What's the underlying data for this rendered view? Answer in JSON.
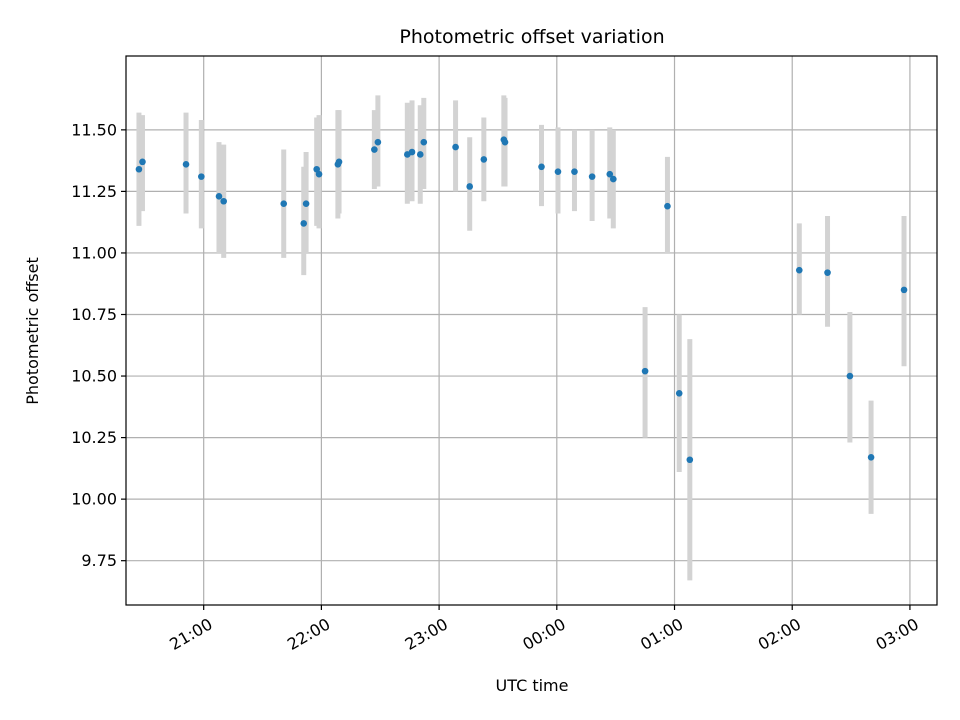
{
  "chart_data": {
    "type": "scatter",
    "title": "Photometric offset variation",
    "xlabel": "UTC time",
    "ylabel": "Photometric offset",
    "x_unit": "UTC hours (values ≥ 24 are after midnight)",
    "xlim": [
      20.34,
      27.23
    ],
    "ylim": [
      9.57,
      11.8
    ],
    "grid": true,
    "x_ticks": [
      {
        "value": 21,
        "label": "21:00"
      },
      {
        "value": 22,
        "label": "22:00"
      },
      {
        "value": 23,
        "label": "23:00"
      },
      {
        "value": 24,
        "label": "00:00"
      },
      {
        "value": 25,
        "label": "01:00"
      },
      {
        "value": 26,
        "label": "02:00"
      },
      {
        "value": 27,
        "label": "03:00"
      }
    ],
    "y_ticks": [
      {
        "value": 9.75,
        "label": "9.75"
      },
      {
        "value": 10.0,
        "label": "10.00"
      },
      {
        "value": 10.25,
        "label": "10.25"
      },
      {
        "value": 10.5,
        "label": "10.50"
      },
      {
        "value": 10.75,
        "label": "10.75"
      },
      {
        "value": 11.0,
        "label": "11.00"
      },
      {
        "value": 11.25,
        "label": "11.25"
      },
      {
        "value": 11.5,
        "label": "11.50"
      }
    ],
    "colors": {
      "marker": "#1f77b4",
      "errorbar": "#d3d3d3",
      "grid": "#b0b0b0"
    },
    "series": [
      {
        "points": [
          {
            "x": 20.45,
            "y": 11.34,
            "lo": 11.11,
            "hi": 11.57
          },
          {
            "x": 20.48,
            "y": 11.37,
            "lo": 11.17,
            "hi": 11.56
          },
          {
            "x": 20.85,
            "y": 11.36,
            "lo": 11.16,
            "hi": 11.57
          },
          {
            "x": 20.98,
            "y": 11.31,
            "lo": 11.1,
            "hi": 11.54
          },
          {
            "x": 21.13,
            "y": 11.23,
            "lo": 11.0,
            "hi": 11.45
          },
          {
            "x": 21.17,
            "y": 11.21,
            "lo": 10.98,
            "hi": 11.44
          },
          {
            "x": 21.68,
            "y": 11.2,
            "lo": 10.98,
            "hi": 11.42
          },
          {
            "x": 21.85,
            "y": 11.12,
            "lo": 10.91,
            "hi": 11.35
          },
          {
            "x": 21.87,
            "y": 11.2,
            "lo": 11.0,
            "hi": 11.41
          },
          {
            "x": 21.96,
            "y": 11.34,
            "lo": 11.11,
            "hi": 11.55
          },
          {
            "x": 21.98,
            "y": 11.32,
            "lo": 11.1,
            "hi": 11.56
          },
          {
            "x": 22.14,
            "y": 11.36,
            "lo": 11.14,
            "hi": 11.58
          },
          {
            "x": 22.15,
            "y": 11.37,
            "lo": 11.16,
            "hi": 11.58
          },
          {
            "x": 22.45,
            "y": 11.42,
            "lo": 11.26,
            "hi": 11.58
          },
          {
            "x": 22.48,
            "y": 11.45,
            "lo": 11.27,
            "hi": 11.64
          },
          {
            "x": 22.73,
            "y": 11.4,
            "lo": 11.2,
            "hi": 11.61
          },
          {
            "x": 22.77,
            "y": 11.41,
            "lo": 11.21,
            "hi": 11.62
          },
          {
            "x": 22.84,
            "y": 11.4,
            "lo": 11.2,
            "hi": 11.6
          },
          {
            "x": 22.87,
            "y": 11.45,
            "lo": 11.26,
            "hi": 11.63
          },
          {
            "x": 23.14,
            "y": 11.43,
            "lo": 11.25,
            "hi": 11.62
          },
          {
            "x": 23.26,
            "y": 11.27,
            "lo": 11.09,
            "hi": 11.47
          },
          {
            "x": 23.38,
            "y": 11.38,
            "lo": 11.21,
            "hi": 11.55
          },
          {
            "x": 23.55,
            "y": 11.46,
            "lo": 11.27,
            "hi": 11.64
          },
          {
            "x": 23.56,
            "y": 11.45,
            "lo": 11.27,
            "hi": 11.63
          },
          {
            "x": 23.87,
            "y": 11.35,
            "lo": 11.19,
            "hi": 11.52
          },
          {
            "x": 24.01,
            "y": 11.33,
            "lo": 11.16,
            "hi": 11.51
          },
          {
            "x": 24.15,
            "y": 11.33,
            "lo": 11.17,
            "hi": 11.5
          },
          {
            "x": 24.3,
            "y": 11.31,
            "lo": 11.13,
            "hi": 11.5
          },
          {
            "x": 24.45,
            "y": 11.32,
            "lo": 11.14,
            "hi": 11.51
          },
          {
            "x": 24.48,
            "y": 11.3,
            "lo": 11.1,
            "hi": 11.5
          },
          {
            "x": 24.75,
            "y": 10.52,
            "lo": 10.25,
            "hi": 10.78
          },
          {
            "x": 24.94,
            "y": 11.19,
            "lo": 11.0,
            "hi": 11.39
          },
          {
            "x": 25.04,
            "y": 10.43,
            "lo": 10.11,
            "hi": 10.75
          },
          {
            "x": 25.13,
            "y": 10.16,
            "lo": 9.67,
            "hi": 10.65
          },
          {
            "x": 26.06,
            "y": 10.93,
            "lo": 10.75,
            "hi": 11.12
          },
          {
            "x": 26.3,
            "y": 10.92,
            "lo": 10.7,
            "hi": 11.15
          },
          {
            "x": 26.49,
            "y": 10.5,
            "lo": 10.23,
            "hi": 10.76
          },
          {
            "x": 26.67,
            "y": 10.17,
            "lo": 9.94,
            "hi": 10.4
          },
          {
            "x": 26.95,
            "y": 10.85,
            "lo": 10.54,
            "hi": 11.15
          }
        ]
      }
    ]
  }
}
